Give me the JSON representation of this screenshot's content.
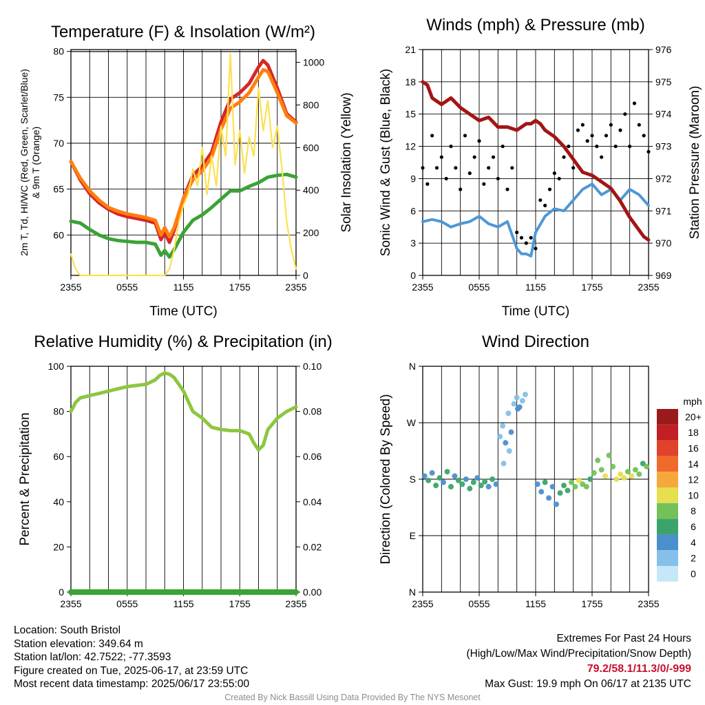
{
  "chart_data": [
    {
      "id": "temp",
      "type": "line",
      "title": "Temperature (F) & Insolation (W/m²)",
      "xlabel": "Time (UTC)",
      "ylabel": "2m T, Td, HI/WC (Red, Green, Scarlet/Blue) & 9m T (Orange)",
      "ylabel_right": "Solar Insolation (Yellow)",
      "x_ticks": [
        "2355",
        "0555",
        "1155",
        "1755",
        "2355"
      ],
      "y_ticks": [
        60,
        65,
        70,
        75,
        80
      ],
      "y_right_ticks": [
        0,
        200,
        400,
        600,
        800,
        1000
      ],
      "ylim": [
        55.6,
        80.2
      ],
      "ylim_right": [
        0,
        1060
      ],
      "grid": true,
      "series": [
        {
          "name": "2m T",
          "axis": "left",
          "color": "#d62728",
          "x": [
            0,
            1,
            2,
            3,
            4,
            5,
            6,
            7,
            8,
            9,
            9.6,
            10,
            10.5,
            11,
            12,
            13,
            14,
            15,
            16,
            17,
            18,
            19,
            20,
            20.5,
            21,
            22,
            23,
            24
          ],
          "y": [
            68,
            66,
            64.5,
            63.5,
            62.8,
            62.3,
            62,
            61.8,
            61.6,
            61.3,
            59.5,
            60.3,
            59.2,
            60.5,
            64,
            66.5,
            67.5,
            69,
            72.3,
            74.8,
            75.5,
            76.5,
            78.3,
            79,
            78.5,
            76,
            73.2,
            72.3
          ]
        },
        {
          "name": "9m T",
          "axis": "left",
          "color": "#ff7f0e",
          "x": [
            0,
            1,
            2,
            3,
            4,
            5,
            6,
            7,
            8,
            9,
            9.6,
            10,
            10.5,
            11,
            12,
            13,
            14,
            15,
            16,
            17,
            18,
            19,
            20,
            20.5,
            21,
            22,
            23,
            24
          ],
          "y": [
            68,
            66.2,
            64.8,
            63.8,
            63,
            62.6,
            62.3,
            62.1,
            61.9,
            61.6,
            60,
            60.8,
            59.8,
            60.8,
            64,
            66,
            67,
            68.5,
            71.5,
            73.8,
            74.5,
            75.5,
            77.2,
            78,
            77.8,
            75.5,
            73,
            72.2
          ]
        },
        {
          "name": "Td",
          "axis": "left",
          "color": "#3aa335",
          "x": [
            0,
            1,
            2,
            3,
            4,
            5,
            6,
            7,
            8,
            9,
            9.6,
            10,
            10.5,
            11,
            12,
            13,
            14,
            15,
            16,
            17,
            18,
            19,
            20,
            21,
            22,
            23,
            24
          ],
          "y": [
            61.5,
            61.3,
            60.6,
            60,
            59.6,
            59.4,
            59.3,
            59.2,
            59.2,
            59,
            57.8,
            58.3,
            57.6,
            58.4,
            60.3,
            61.6,
            62.2,
            63,
            63.9,
            64.8,
            64.8,
            65.3,
            65.7,
            66.3,
            66.5,
            66.6,
            66.3
          ]
        },
        {
          "name": "Solar Insolation",
          "axis": "right",
          "color": "#fde050",
          "x": [
            0,
            0.4,
            0.8,
            1,
            2,
            3,
            4,
            5,
            6,
            7,
            8,
            9,
            10,
            10.5,
            11,
            11.5,
            12,
            12.5,
            13,
            13.5,
            14,
            14.5,
            15,
            15.5,
            16,
            16.5,
            17,
            17.5,
            18,
            18.5,
            19,
            19.5,
            20,
            20.5,
            21,
            21.5,
            22,
            22.5,
            23,
            23.5,
            24
          ],
          "y": [
            100,
            40,
            10,
            0,
            0,
            0,
            0,
            0,
            0,
            0,
            0,
            0,
            0,
            30,
            120,
            250,
            330,
            380,
            500,
            420,
            600,
            380,
            560,
            420,
            700,
            560,
            1040,
            520,
            680,
            480,
            650,
            560,
            880,
            680,
            820,
            600,
            700,
            500,
            250,
            120,
            30
          ]
        }
      ]
    },
    {
      "id": "wind",
      "type": "line",
      "title": "Winds (mph) & Pressure (mb)",
      "xlabel": "Time (UTC)",
      "ylabel": "Sonic Wind & Gust (Blue, Black)",
      "ylabel_right": "Station Pressure (Maroon)",
      "x_ticks": [
        "2355",
        "0555",
        "1155",
        "1755",
        "2355"
      ],
      "y_ticks": [
        0,
        3,
        6,
        9,
        12,
        15,
        18,
        21
      ],
      "y_right_ticks": [
        969,
        970,
        971,
        972,
        973,
        974,
        975,
        976
      ],
      "ylim": [
        0,
        21
      ],
      "ylim_right": [
        969,
        976
      ],
      "grid": true,
      "series": [
        {
          "name": "Sonic Wind",
          "axis": "left",
          "color": "#4f97d5",
          "x": [
            0,
            1,
            2,
            3,
            4,
            5,
            6,
            7,
            8,
            9,
            10,
            10.5,
            11,
            11.5,
            12,
            13,
            14,
            15,
            16,
            17,
            18,
            19,
            20,
            21,
            22,
            23,
            24
          ],
          "y": [
            5,
            5.2,
            5,
            4.5,
            4.8,
            5,
            5.5,
            4.8,
            4.5,
            5,
            2.5,
            2,
            2,
            1.8,
            4,
            5.5,
            6.2,
            6,
            7,
            8,
            8.5,
            7.5,
            8,
            7,
            8,
            7.5,
            6.5
          ]
        },
        {
          "name": "Gust",
          "axis": "left",
          "color": "#000000",
          "style": "points",
          "x": [
            0,
            0.5,
            1,
            1.5,
            2,
            2.5,
            3,
            3.5,
            4,
            4.5,
            5,
            5.5,
            6,
            6.5,
            7,
            7.5,
            8,
            8.5,
            9,
            9.5,
            10,
            10.5,
            11,
            11.5,
            12,
            12.5,
            13,
            13.5,
            14,
            14.5,
            15,
            15.5,
            16,
            16.5,
            17,
            17.5,
            18,
            18.5,
            19,
            19.5,
            20,
            20.5,
            21,
            21.5,
            22,
            22.5,
            23,
            23.5,
            24
          ],
          "y": [
            10,
            8.5,
            13,
            10,
            11,
            9,
            12,
            10,
            8,
            13,
            9.5,
            11,
            12.5,
            8.5,
            10,
            11,
            9,
            12,
            8,
            10,
            4,
            3.5,
            3,
            3.5,
            2.5,
            7,
            6.5,
            8,
            9.5,
            9,
            11,
            12,
            10,
            13.5,
            14,
            12.5,
            13,
            12,
            11,
            13,
            14,
            12,
            13.5,
            15,
            12,
            16,
            14,
            13,
            11.5
          ]
        },
        {
          "name": "Station Pressure",
          "axis": "right",
          "color": "#a31515",
          "x": [
            0,
            0.5,
            1,
            2,
            3,
            4,
            5,
            6,
            7,
            8,
            9,
            10,
            11,
            11.5,
            12,
            12.5,
            13,
            14,
            15,
            16,
            17,
            18,
            19,
            20,
            21,
            22,
            23,
            23.5,
            24
          ],
          "y": [
            975,
            974.9,
            974.5,
            974.3,
            974.5,
            974.2,
            974,
            973.8,
            973.9,
            973.6,
            973.6,
            973.5,
            973.7,
            973.7,
            973.8,
            973.7,
            973.5,
            973.3,
            973,
            972.6,
            972.2,
            972.1,
            971.9,
            971.7,
            971.3,
            970.8,
            970.4,
            970.2,
            970.1
          ]
        }
      ]
    },
    {
      "id": "rh",
      "type": "line",
      "title": "Relative Humidity (%) & Precipitation (in)",
      "xlabel": "",
      "ylabel": "Percent & Precipitation",
      "x_ticks": [
        "2355",
        "0555",
        "1155",
        "1755",
        "2355"
      ],
      "y_ticks": [
        0,
        20,
        40,
        60,
        80,
        100
      ],
      "y_right_ticks": [
        "0.00",
        "0.02",
        "0.04",
        "0.06",
        "0.08",
        "0.10"
      ],
      "ylim": [
        0,
        100
      ],
      "ylim_right": [
        0,
        0.1
      ],
      "grid": true,
      "series": [
        {
          "name": "Relative Humidity",
          "axis": "left",
          "color": "#8dc63f",
          "x": [
            0,
            0.5,
            1,
            2,
            3,
            4,
            5,
            6,
            7,
            8,
            9,
            9.5,
            10,
            10.5,
            11,
            12,
            13,
            14,
            15,
            16,
            17,
            18,
            19,
            19.5,
            20,
            20.5,
            21,
            22,
            23,
            24
          ],
          "y": [
            80,
            84,
            86,
            87,
            88,
            89,
            90,
            91,
            91.5,
            92,
            94,
            96,
            97,
            96.5,
            95,
            89,
            80,
            77,
            73,
            72,
            71.5,
            71.5,
            70,
            66,
            63,
            65,
            72,
            77,
            80,
            82
          ]
        },
        {
          "name": "Precipitation",
          "axis": "right",
          "color": "#3aa335",
          "x": [
            0,
            24
          ],
          "y": [
            0,
            0
          ]
        }
      ]
    },
    {
      "id": "dir",
      "type": "scatter",
      "title": "Wind Direction",
      "xlabel": "",
      "ylabel": "Direction (Colored By Speed)",
      "x_ticks": [
        "2355",
        "0555",
        "1155",
        "1755",
        "2355"
      ],
      "y_ticks": [
        "N",
        "E",
        "S",
        "W",
        "N"
      ],
      "ylim": [
        0,
        360
      ],
      "grid": true,
      "colorbar": {
        "title": "mph",
        "labels": [
          "0",
          "2",
          "4",
          "6",
          "8",
          "10",
          "12",
          "14",
          "16",
          "18",
          "20+"
        ],
        "colors": [
          "#c6e7f7",
          "#85c0e8",
          "#4b8fcd",
          "#3ba46a",
          "#74c15a",
          "#e6df4f",
          "#f6a83c",
          "#ef6b2c",
          "#e2412b",
          "#c21f25",
          "#9b1a1c"
        ]
      },
      "points": [
        {
          "t": 0.2,
          "d": 185,
          "s": 4
        },
        {
          "t": 0.6,
          "d": 178,
          "s": 6
        },
        {
          "t": 1,
          "d": 190,
          "s": 4
        },
        {
          "t": 1.4,
          "d": 170,
          "s": 5
        },
        {
          "t": 1.8,
          "d": 182,
          "s": 6
        },
        {
          "t": 2.2,
          "d": 175,
          "s": 4
        },
        {
          "t": 2.6,
          "d": 192,
          "s": 5
        },
        {
          "t": 3,
          "d": 168,
          "s": 6
        },
        {
          "t": 3.4,
          "d": 185,
          "s": 4
        },
        {
          "t": 3.8,
          "d": 178,
          "s": 5
        },
        {
          "t": 4.2,
          "d": 172,
          "s": 6
        },
        {
          "t": 4.6,
          "d": 180,
          "s": 4
        },
        {
          "t": 5,
          "d": 165,
          "s": 5
        },
        {
          "t": 5.4,
          "d": 175,
          "s": 6
        },
        {
          "t": 5.8,
          "d": 182,
          "s": 4
        },
        {
          "t": 6.2,
          "d": 170,
          "s": 5
        },
        {
          "t": 6.6,
          "d": 176,
          "s": 6
        },
        {
          "t": 7,
          "d": 168,
          "s": 4
        },
        {
          "t": 7.4,
          "d": 180,
          "s": 5
        },
        {
          "t": 7.8,
          "d": 172,
          "s": 4
        },
        {
          "t": 8.2,
          "d": 248,
          "s": 2
        },
        {
          "t": 8.5,
          "d": 265,
          "s": 2
        },
        {
          "t": 8.8,
          "d": 238,
          "s": 3
        },
        {
          "t": 9.1,
          "d": 285,
          "s": 2
        },
        {
          "t": 9.4,
          "d": 255,
          "s": 3
        },
        {
          "t": 9.7,
          "d": 300,
          "s": 2
        },
        {
          "t": 10,
          "d": 310,
          "s": 2
        },
        {
          "t": 10.3,
          "d": 295,
          "s": 3
        },
        {
          "t": 10.6,
          "d": 305,
          "s": 2
        },
        {
          "t": 10.9,
          "d": 315,
          "s": 2
        },
        {
          "t": 8.6,
          "d": 205,
          "s": 1
        },
        {
          "t": 9.2,
          "d": 225,
          "s": 2
        },
        {
          "t": 10.1,
          "d": 292,
          "s": 3
        },
        {
          "t": 12.2,
          "d": 172,
          "s": 4
        },
        {
          "t": 12.6,
          "d": 160,
          "s": 4
        },
        {
          "t": 13,
          "d": 175,
          "s": 5
        },
        {
          "t": 13.4,
          "d": 150,
          "s": 4
        },
        {
          "t": 13.8,
          "d": 168,
          "s": 4
        },
        {
          "t": 14.2,
          "d": 140,
          "s": 4
        },
        {
          "t": 14.6,
          "d": 158,
          "s": 5
        },
        {
          "t": 15,
          "d": 170,
          "s": 6
        },
        {
          "t": 15.4,
          "d": 162,
          "s": 6
        },
        {
          "t": 15.8,
          "d": 175,
          "s": 7
        },
        {
          "t": 16.2,
          "d": 168,
          "s": 8
        },
        {
          "t": 16.6,
          "d": 178,
          "s": 9
        },
        {
          "t": 17,
          "d": 172,
          "s": 8
        },
        {
          "t": 17.4,
          "d": 168,
          "s": 7
        },
        {
          "t": 17.8,
          "d": 180,
          "s": 6
        },
        {
          "t": 18.2,
          "d": 190,
          "s": 7
        },
        {
          "t": 18.6,
          "d": 210,
          "s": 8
        },
        {
          "t": 19,
          "d": 195,
          "s": 7
        },
        {
          "t": 19.4,
          "d": 185,
          "s": 9
        },
        {
          "t": 19.8,
          "d": 218,
          "s": 8
        },
        {
          "t": 20.2,
          "d": 200,
          "s": 8
        },
        {
          "t": 20.6,
          "d": 180,
          "s": 10
        },
        {
          "t": 21,
          "d": 188,
          "s": 9
        },
        {
          "t": 21.4,
          "d": 182,
          "s": 10
        },
        {
          "t": 21.8,
          "d": 192,
          "s": 8
        },
        {
          "t": 22.2,
          "d": 185,
          "s": 9
        },
        {
          "t": 22.6,
          "d": 195,
          "s": 8
        },
        {
          "t": 23,
          "d": 188,
          "s": 7
        },
        {
          "t": 23.4,
          "d": 205,
          "s": 6
        },
        {
          "t": 23.8,
          "d": 200,
          "s": 7
        }
      ]
    }
  ],
  "footer_left": [
    "Location: South Bristol",
    "Station elevation: 349.64 m",
    "Station lat/lon: 42.7522; -77.3593",
    "Figure created on Tue, 2025-06-17, at 23:59 UTC",
    "Most recent data timestamp: 2025/06/17 23:55:00"
  ],
  "extremes": {
    "title": "Extremes For Past 24 Hours",
    "subtitle": "(High/Low/Max Wind/Precipitation/Snow Depth)",
    "values": "79.2/58.1/11.3/0/-999",
    "max_gust": "Max Gust: 19.9 mph On 06/17 at 2135 UTC",
    "value_color": "#c8102e"
  },
  "credit": "Created By Nick Bassill Using Data Provided By The NYS Mesonet"
}
